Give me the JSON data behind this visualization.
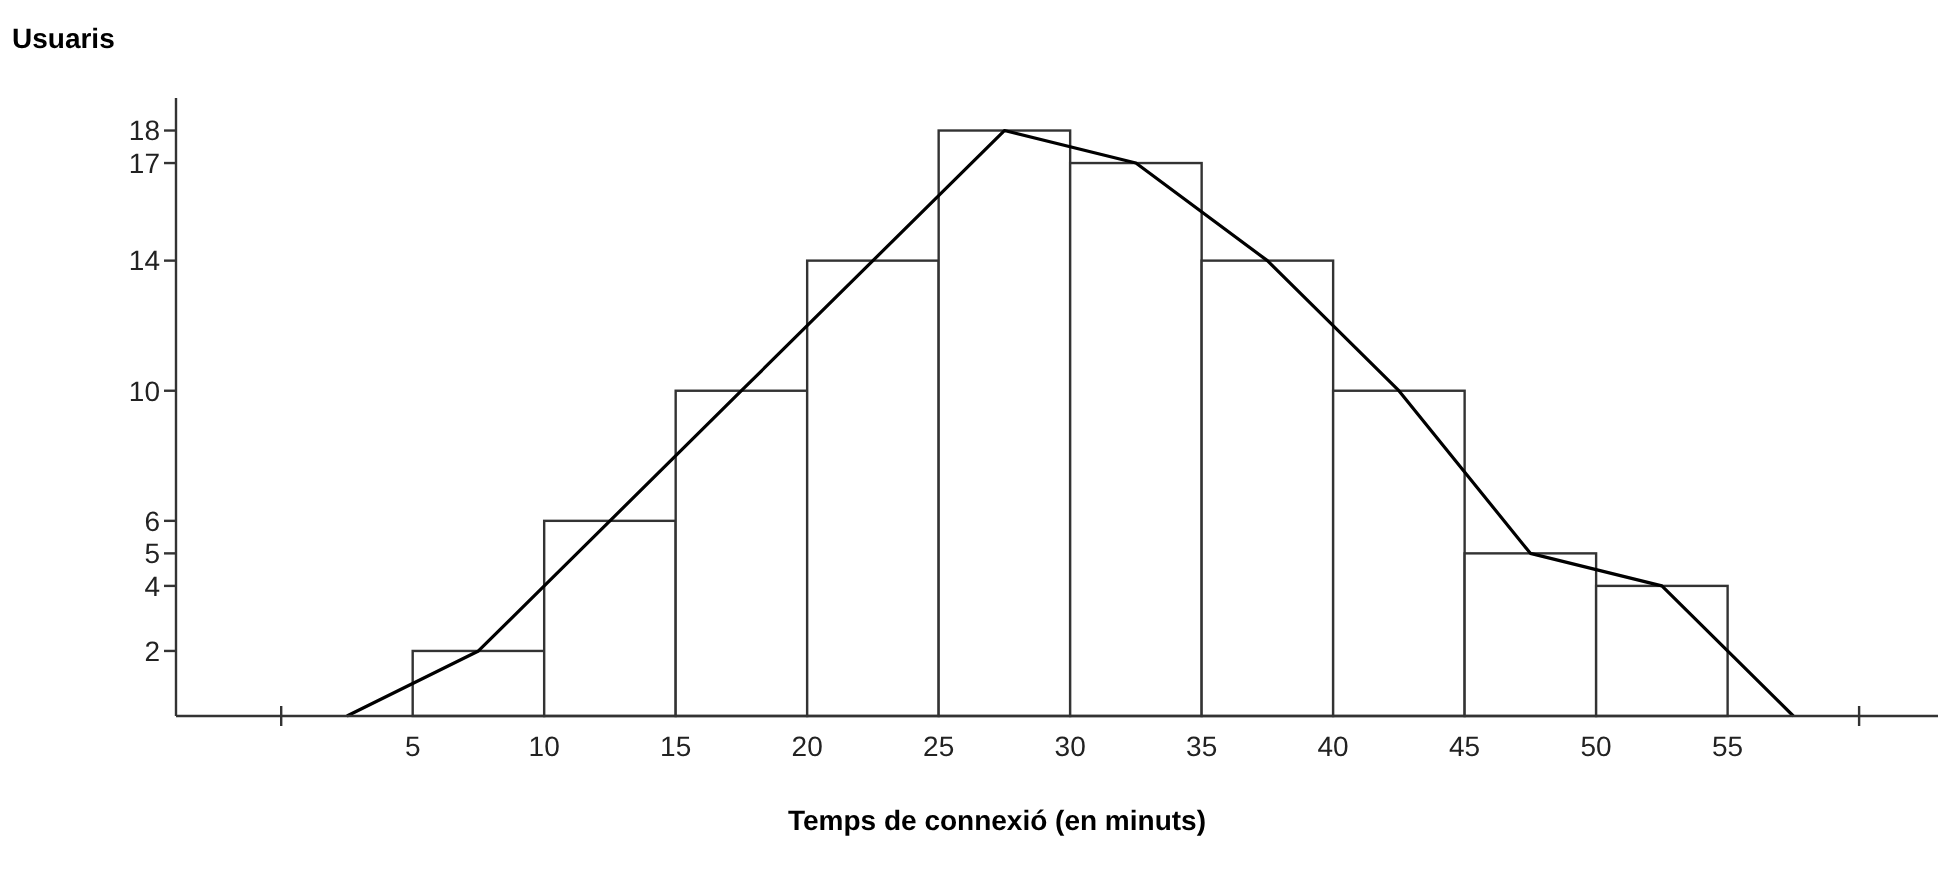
{
  "chart_data": {
    "type": "histogram",
    "xlabel": "Temps de connexió (en minuts)",
    "ylabel": "Usuaris",
    "bins": [
      5,
      10,
      15,
      20,
      25,
      30,
      35,
      40,
      45,
      50,
      55
    ],
    "values": [
      2,
      6,
      10,
      14,
      18,
      17,
      14,
      10,
      5,
      4
    ],
    "color": "#ffffff",
    "series": [
      {
        "type": "line",
        "color": "#000000",
        "x": [
          2.5,
          7.5,
          12.5,
          17.5,
          22.5,
          27.5,
          32.5,
          37.5,
          42.5,
          47.5,
          52.5,
          57.5
        ],
        "values": [
          0,
          2,
          6,
          10,
          14,
          18,
          17,
          14,
          10,
          5,
          4,
          0
        ]
      }
    ],
    "xlim": [
      -4,
      63
    ],
    "xticks": [
      {
        "value": 0,
        "label": null
      },
      5,
      10,
      15,
      20,
      25,
      30,
      35,
      40,
      45,
      50,
      55,
      {
        "value": 60,
        "label": null
      }
    ],
    "ylim": [
      0,
      19
    ],
    "yticks": [
      2,
      4,
      5,
      6,
      10,
      14,
      17,
      18
    ]
  }
}
